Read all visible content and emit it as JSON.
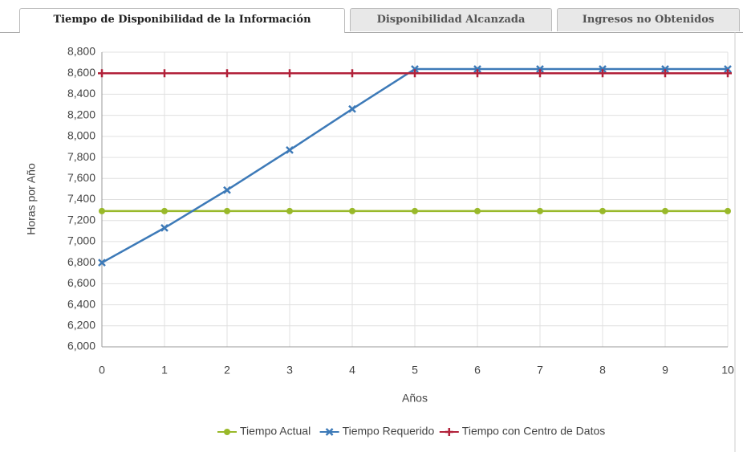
{
  "tabs": [
    "Tiempo de Disponibilidad de la Información",
    "Disponibilidad Alcanzada",
    "Ingresos no Obtenidos"
  ],
  "chart_data": {
    "type": "line",
    "x_label": "Años",
    "y_label": "Horas por Año",
    "x": [
      0,
      1,
      2,
      3,
      4,
      5,
      6,
      7,
      8,
      9,
      10
    ],
    "xlim": [
      0,
      10
    ],
    "xticks": [
      0,
      1,
      2,
      3,
      4,
      5,
      6,
      7,
      8,
      9,
      10
    ],
    "ylim": [
      6000,
      8800
    ],
    "yticks": [
      {
        "value": 6000,
        "label": "6,000"
      },
      {
        "value": 6200,
        "label": "6,200"
      },
      {
        "value": 6400,
        "label": "6,400"
      },
      {
        "value": 6600,
        "label": "6,600"
      },
      {
        "value": 6800,
        "label": "6,800"
      },
      {
        "value": 7000,
        "label": "7,000"
      },
      {
        "value": 7200,
        "label": "7,200"
      },
      {
        "value": 7400,
        "label": "7,400"
      },
      {
        "value": 7600,
        "label": "7,600"
      },
      {
        "value": 7800,
        "label": "7,800"
      },
      {
        "value": 8000,
        "label": "8,000"
      },
      {
        "value": 8200,
        "label": "8,200"
      },
      {
        "value": 8400,
        "label": "8,400"
      },
      {
        "value": 8600,
        "label": "8,600"
      },
      {
        "value": 8800,
        "label": "8,800"
      }
    ],
    "grid": true,
    "series": [
      {
        "name": "Tiempo Actual",
        "color": "#99b92a",
        "marker": "circle",
        "values": [
          7290,
          7290,
          7290,
          7290,
          7290,
          7290,
          7290,
          7290,
          7290,
          7290,
          7290
        ]
      },
      {
        "name": "Tiempo Requerido",
        "color": "#3d7ab8",
        "marker": "x",
        "values": [
          6800,
          7130,
          7490,
          7870,
          8260,
          8640,
          8640,
          8640,
          8640,
          8640,
          8640
        ]
      },
      {
        "name": "Tiempo con Centro de Datos",
        "color": "#b2223a",
        "marker": "plus",
        "values": [
          8600,
          8600,
          8600,
          8600,
          8600,
          8600,
          8600,
          8600,
          8600,
          8600,
          8600
        ]
      }
    ]
  }
}
